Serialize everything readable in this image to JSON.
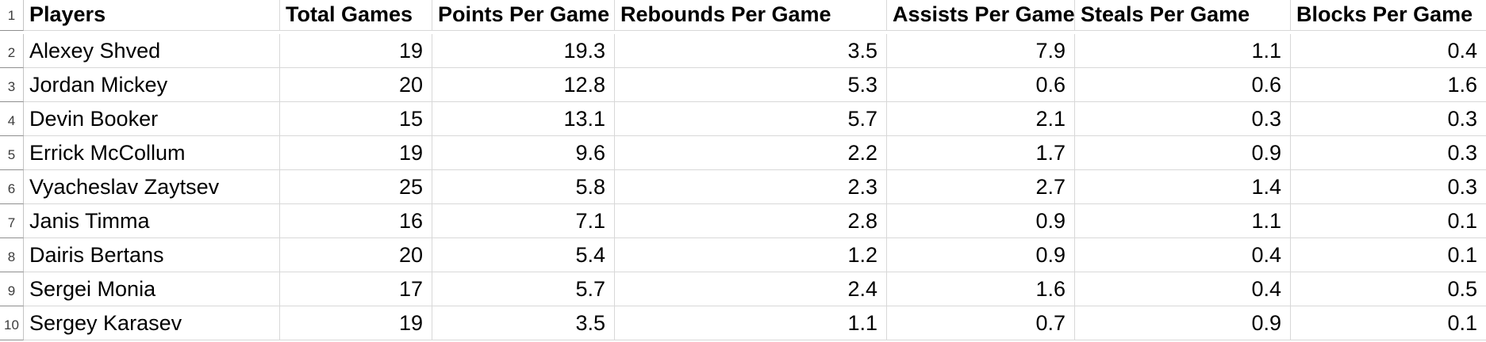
{
  "sheet": {
    "app": "spreadsheet",
    "grid_line_color": "#d8d8d8",
    "row_gutter_separator_color": "#8f8f8f",
    "text_color": "#000000",
    "row_numbers": [
      "1",
      "2",
      "3",
      "4",
      "5",
      "6",
      "7",
      "8",
      "9",
      "10"
    ],
    "columns": [
      {
        "label": "Players",
        "align": "left"
      },
      {
        "label": "Total Games",
        "align": "right"
      },
      {
        "label": "Points Per Game",
        "align": "right"
      },
      {
        "label": "Rebounds Per Game",
        "align": "right"
      },
      {
        "label": "Assists Per Game",
        "align": "right"
      },
      {
        "label": "Steals Per Game",
        "align": "right"
      },
      {
        "label": "Blocks Per Game",
        "align": "right"
      }
    ],
    "rows": [
      {
        "cells": [
          "Alexey Shved",
          "19",
          "19.3",
          "3.5",
          "7.9",
          "1.1",
          "0.4"
        ]
      },
      {
        "cells": [
          "Jordan Mickey",
          "20",
          "12.8",
          "5.3",
          "0.6",
          "0.6",
          "1.6"
        ]
      },
      {
        "cells": [
          "Devin Booker",
          "15",
          "13.1",
          "5.7",
          "2.1",
          "0.3",
          "0.3"
        ]
      },
      {
        "cells": [
          "Errick McCollum",
          "19",
          "9.6",
          "2.2",
          "1.7",
          "0.9",
          "0.3"
        ]
      },
      {
        "cells": [
          "Vyacheslav Zaytsev",
          "25",
          "5.8",
          "2.3",
          "2.7",
          "1.4",
          "0.3"
        ]
      },
      {
        "cells": [
          "Janis Timma",
          "16",
          "7.1",
          "2.8",
          "0.9",
          "1.1",
          "0.1"
        ]
      },
      {
        "cells": [
          "Dairis Bertans",
          "20",
          "5.4",
          "1.2",
          "0.9",
          "0.4",
          "0.1"
        ]
      },
      {
        "cells": [
          "Sergei Monia",
          "17",
          "5.7",
          "2.4",
          "1.6",
          "0.4",
          "0.5"
        ]
      },
      {
        "cells": [
          "Sergey Karasev",
          "19",
          "3.5",
          "1.1",
          "0.7",
          "0.9",
          "0.1"
        ]
      }
    ]
  }
}
